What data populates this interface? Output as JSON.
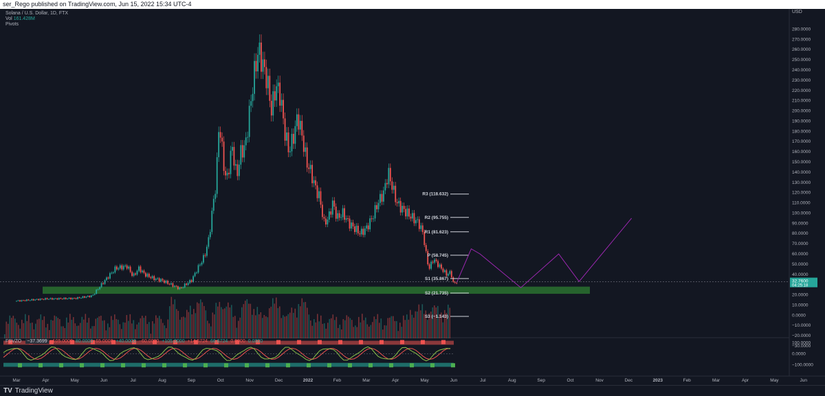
{
  "header": {
    "published": "ser_Rego published on TradingView.com, Jun 15, 2022 15:34 UTC-4"
  },
  "legend": {
    "symbol": "Solana / U.S. Dollar, 1D, FTX",
    "vol_label": "Vol",
    "vol_value": "161.428M",
    "pivots_label": "Pivots"
  },
  "indicator": {
    "name": "FSVZO",
    "value": "−37.3699",
    "levels": [
      "105.0000",
      "80.0000",
      "65.0000",
      "+40.0000",
      "−60.0000",
      "+105.0000",
      "+14.5724",
      "66.6724",
      "0.0000",
      "0.0000"
    ]
  },
  "footer": {
    "brand": "TradingView",
    "logo": "tradingview-logo-icon"
  },
  "colors": {
    "up": "#26a69a",
    "down": "#ef5350",
    "zone": "#2e7d32",
    "arrow": "#9c27b0",
    "background": "#131722"
  },
  "chart_data": {
    "type": "candlestick",
    "price_axis_label": "USD",
    "price_ticks": [
      "280.0000",
      "270.0000",
      "260.0000",
      "250.0000",
      "240.0000",
      "230.0000",
      "220.0000",
      "210.0000",
      "200.0000",
      "190.0000",
      "180.0000",
      "170.0000",
      "160.0000",
      "150.0000",
      "140.0000",
      "130.0000",
      "120.0000",
      "110.0000",
      "100.0000",
      "90.0000",
      "80.0000",
      "70.0000",
      "60.0000",
      "50.0000",
      "40.0000",
      "30.0000",
      "20.0000",
      "10.0000",
      "0.0000",
      "−10.0000",
      "−20.0000",
      "−30.0000"
    ],
    "osc_ticks": [
      "100.0000",
      "0.0000",
      "−100.0000"
    ],
    "time_ticks": [
      "Mar",
      "Apr",
      "May",
      "Jun",
      "Jul",
      "Aug",
      "Sep",
      "Oct",
      "Nov",
      "Dec",
      "2022",
      "Feb",
      "Mar",
      "Apr",
      "May",
      "Jun",
      "Jul",
      "Aug",
      "Sep",
      "Oct",
      "Nov",
      "Dec",
      "2023",
      "Feb",
      "Mar",
      "Apr",
      "May",
      "Jun"
    ],
    "last_price": "32.7600",
    "countdown": "04:25:18",
    "ylim": [
      -30,
      285
    ],
    "price_path": [
      [
        0,
        14
      ],
      [
        1,
        16
      ],
      [
        2,
        16.5
      ],
      [
        2.6,
        19
      ],
      [
        3,
        33
      ],
      [
        3.4,
        46
      ],
      [
        3.8,
        48
      ],
      [
        4,
        38
      ],
      [
        4.2,
        46
      ],
      [
        4.4,
        40
      ],
      [
        4.7,
        36
      ],
      [
        5,
        34
      ],
      [
        5.3,
        30
      ],
      [
        5.6,
        26
      ],
      [
        6,
        34
      ],
      [
        6.2,
        45
      ],
      [
        6.45,
        58
      ],
      [
        6.6,
        75
      ],
      [
        6.75,
        110
      ],
      [
        6.85,
        130
      ],
      [
        6.95,
        190
      ],
      [
        7.1,
        150
      ],
      [
        7.2,
        130
      ],
      [
        7.4,
        165
      ],
      [
        7.55,
        135
      ],
      [
        7.7,
        160
      ],
      [
        7.85,
        165
      ],
      [
        8,
        200
      ],
      [
        8.15,
        235
      ],
      [
        8.3,
        260
      ],
      [
        8.45,
        245
      ],
      [
        8.6,
        230
      ],
      [
        8.75,
        200
      ],
      [
        8.9,
        225
      ],
      [
        9.05,
        215
      ],
      [
        9.2,
        180
      ],
      [
        9.35,
        160
      ],
      [
        9.5,
        175
      ],
      [
        9.65,
        195
      ],
      [
        9.8,
        175
      ],
      [
        9.95,
        150
      ],
      [
        10.1,
        140
      ],
      [
        10.25,
        125
      ],
      [
        10.4,
        115
      ],
      [
        10.55,
        90
      ],
      [
        10.7,
        95
      ],
      [
        10.85,
        110
      ],
      [
        11,
        95
      ],
      [
        11.2,
        100
      ],
      [
        11.4,
        90
      ],
      [
        11.6,
        85
      ],
      [
        11.8,
        80
      ],
      [
        12,
        85
      ],
      [
        12.2,
        95
      ],
      [
        12.4,
        110
      ],
      [
        12.6,
        120
      ],
      [
        12.75,
        140
      ],
      [
        12.9,
        125
      ],
      [
        13.05,
        110
      ],
      [
        13.2,
        105
      ],
      [
        13.4,
        100
      ],
      [
        13.6,
        95
      ],
      [
        13.8,
        90
      ],
      [
        13.95,
        80
      ],
      [
        14.05,
        60
      ],
      [
        14.15,
        45
      ],
      [
        14.3,
        55
      ],
      [
        14.45,
        50
      ],
      [
        14.6,
        45
      ],
      [
        14.75,
        40
      ],
      [
        14.9,
        42
      ],
      [
        15,
        30
      ],
      [
        15.1,
        32.76
      ]
    ],
    "pivot_levels": [
      {
        "label": "R3 (118.632)",
        "value": 118.632
      },
      {
        "label": "R2 (95.755)",
        "value": 95.755
      },
      {
        "label": "R1 (81.623)",
        "value": 81.623
      },
      {
        "label": "P (58.745)",
        "value": 58.745
      },
      {
        "label": "S1 (35.867)",
        "value": 35.867
      },
      {
        "label": "S2 (21.735)",
        "value": 21.735
      },
      {
        "label": "S3 (−1.143)",
        "value": -1.143
      }
    ],
    "support_zone": [
      21,
      28
    ],
    "projection": [
      [
        15.1,
        32
      ],
      [
        15.6,
        65
      ],
      [
        15.9,
        60
      ],
      [
        17.3,
        27
      ],
      [
        18.6,
        60
      ],
      [
        19.3,
        33
      ],
      [
        21.1,
        95
      ]
    ]
  }
}
